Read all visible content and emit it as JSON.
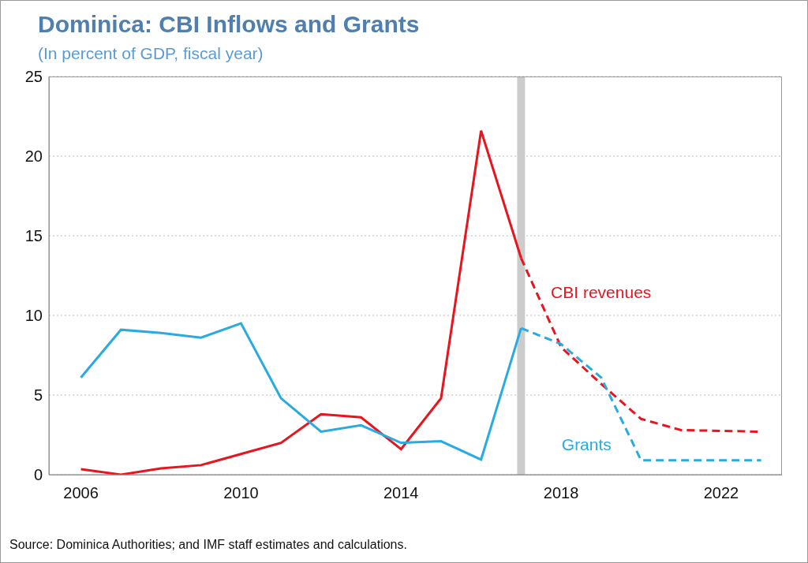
{
  "chart_data": {
    "type": "line",
    "title": "Dominica: CBI Inflows and Grants",
    "subtitle": "(In percent of GDP, fiscal year)",
    "source": "Source: Dominica Authorities; and IMF staff estimates and calculations.",
    "x": [
      2006,
      2007,
      2008,
      2009,
      2010,
      2011,
      2012,
      2013,
      2014,
      2015,
      2016,
      2017,
      2018,
      2019,
      2020,
      2021,
      2022,
      2023
    ],
    "series": [
      {
        "name": "CBI revenues",
        "color": "#e8141e",
        "values": [
          0.35,
          0.0,
          0.4,
          0.6,
          1.3,
          2.0,
          3.8,
          3.6,
          1.6,
          4.8,
          21.6,
          13.6,
          8.0,
          5.7,
          3.5,
          2.8,
          2.75,
          2.7
        ]
      },
      {
        "name": "Grants",
        "color": "#29abe2",
        "values": [
          6.1,
          9.1,
          8.9,
          8.6,
          9.5,
          4.8,
          2.7,
          3.1,
          2.0,
          2.1,
          0.95,
          9.2,
          8.2,
          6.1,
          0.9,
          0.9,
          0.9,
          0.9
        ]
      }
    ],
    "forecast_start": 2017,
    "xlim": [
      2005.2,
      2023.5
    ],
    "xticks": [
      2006,
      2010,
      2014,
      2018,
      2022
    ],
    "ylim": [
      0,
      25
    ],
    "yticks": [
      0,
      5,
      10,
      15,
      20,
      25
    ],
    "grid": true
  }
}
